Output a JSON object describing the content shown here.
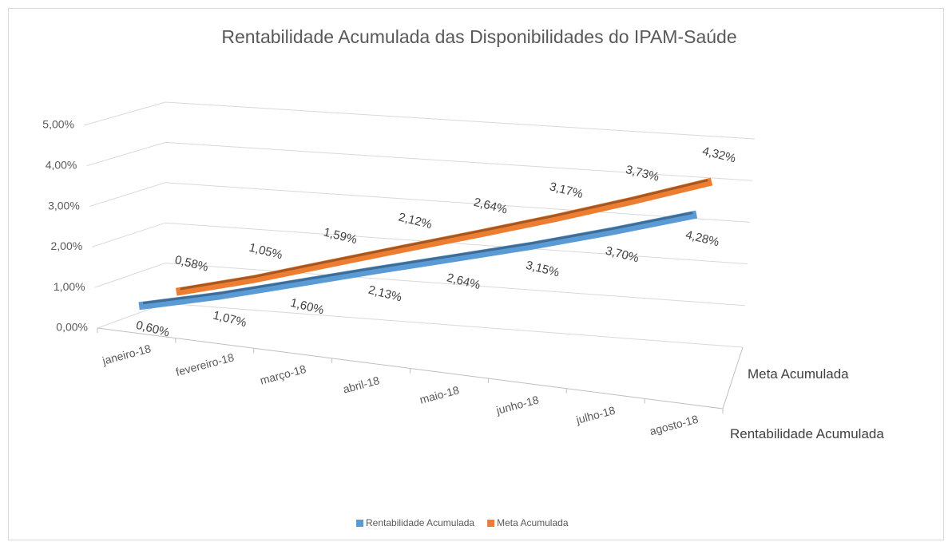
{
  "chart_data": {
    "type": "line3d",
    "title": "Rentabilidade Acumulada das Disponibilidades do IPAM-Saúde",
    "categories": [
      "janeiro-18",
      "fevereiro-18",
      "março-18",
      "abril-18",
      "maio-18",
      "junho-18",
      "julho-18",
      "agosto-18"
    ],
    "series": [
      {
        "name": "Rentabilidade Acumulada",
        "color": "#5b9bd5",
        "values": [
          0.6,
          1.07,
          1.6,
          2.13,
          2.64,
          3.15,
          3.7,
          4.28
        ],
        "value_labels": [
          "0,60%",
          "1,07%",
          "1,60%",
          "2,13%",
          "2,64%",
          "3,15%",
          "3,70%",
          "4,28%"
        ]
      },
      {
        "name": "Meta Acumulada",
        "color": "#ed7d31",
        "values": [
          0.58,
          1.05,
          1.59,
          2.12,
          2.64,
          3.17,
          3.73,
          4.32
        ],
        "value_labels": [
          "0,58%",
          "1,05%",
          "1,59%",
          "2,12%",
          "2,64%",
          "3,17%",
          "3,73%",
          "4,32%"
        ]
      }
    ],
    "ylim": [
      0,
      5
    ],
    "yticks": [
      {
        "value": 0,
        "label": "0,00%"
      },
      {
        "value": 1,
        "label": "1,00%"
      },
      {
        "value": 2,
        "label": "2,00%"
      },
      {
        "value": 3,
        "label": "3,00%"
      },
      {
        "value": 4,
        "label": "4,00%"
      },
      {
        "value": 5,
        "label": "5,00%"
      }
    ],
    "grid": true,
    "legend": "bottom"
  }
}
